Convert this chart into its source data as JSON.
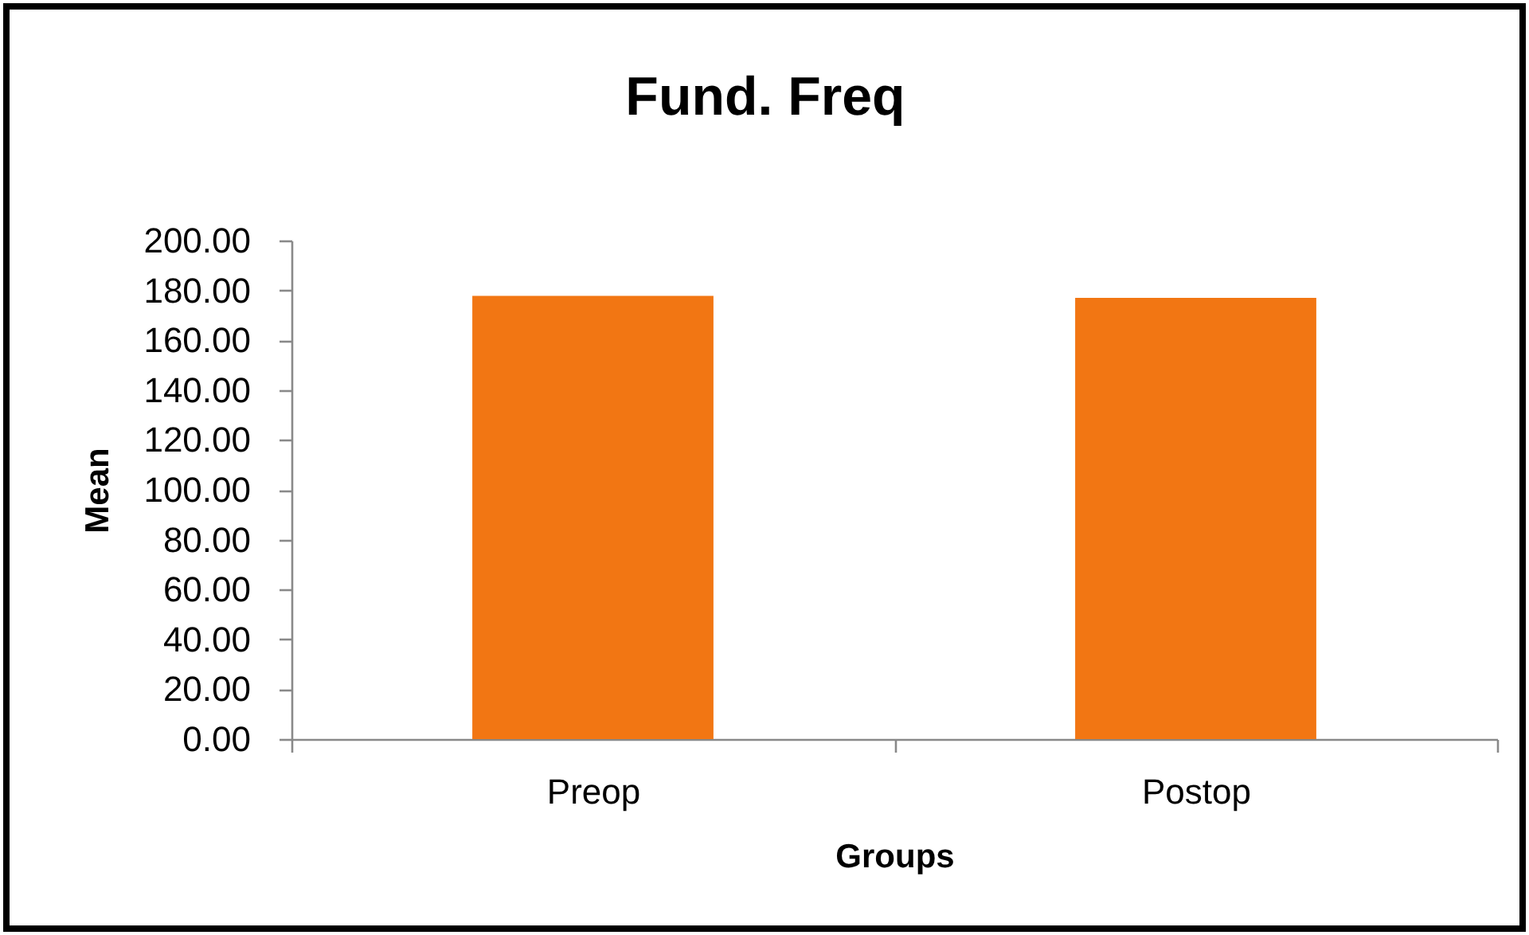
{
  "chart_data": {
    "type": "bar",
    "title": "Fund. Freq",
    "xlabel": "Groups",
    "ylabel": "Mean",
    "categories": [
      "Preop",
      "Postop"
    ],
    "values": [
      177.8,
      177.0
    ],
    "color": "#f27613",
    "ylim": [
      0,
      200
    ],
    "yticks": [
      {
        "value": 0,
        "label": "0.00"
      },
      {
        "value": 20,
        "label": "20.00"
      },
      {
        "value": 40,
        "label": "40.00"
      },
      {
        "value": 60,
        "label": "60.00"
      },
      {
        "value": 80,
        "label": "80.00"
      },
      {
        "value": 100,
        "label": "100.00"
      },
      {
        "value": 120,
        "label": "120.00"
      },
      {
        "value": 140,
        "label": "140.00"
      },
      {
        "value": 160,
        "label": "160.00"
      },
      {
        "value": 180,
        "label": "180.00"
      },
      {
        "value": 200,
        "label": "200.00"
      }
    ]
  }
}
